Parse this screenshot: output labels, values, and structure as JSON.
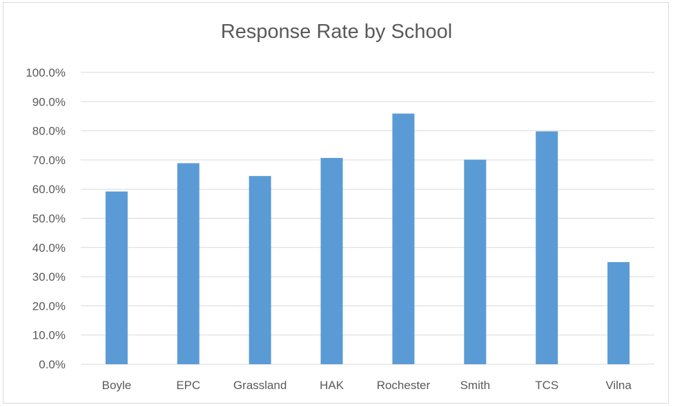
{
  "chart_data": {
    "type": "bar",
    "title": "Response  Rate by School",
    "xlabel": "",
    "ylabel": "",
    "categories": [
      "Boyle",
      "EPC",
      "Grassland",
      "HAK",
      "Rochester",
      "Smith",
      "TCS",
      "Vilna"
    ],
    "values": [
      59.2,
      68.9,
      64.5,
      70.7,
      85.9,
      70.1,
      79.8,
      35.0
    ],
    "ylim": [
      0,
      100
    ],
    "yticks": [
      "0.0%",
      "10.0%",
      "20.0%",
      "30.0%",
      "40.0%",
      "50.0%",
      "60.0%",
      "70.0%",
      "80.0%",
      "90.0%",
      "100.0%"
    ],
    "grid": true,
    "legend": "none",
    "bar_color": "#5b9bd5",
    "grid_color": "#d9d9d9"
  }
}
